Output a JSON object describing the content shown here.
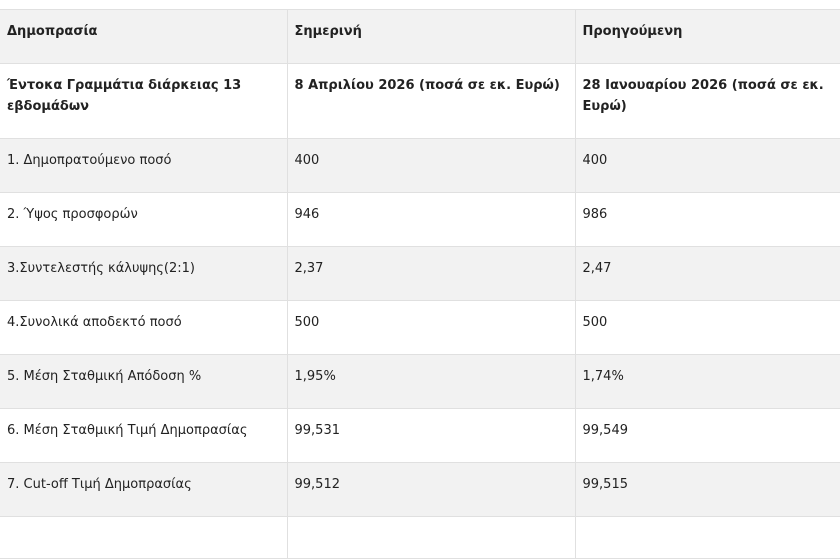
{
  "table": {
    "header": [
      "Δημοπρασία",
      "Σημερινή",
      "Προηγούμενη"
    ],
    "rows": [
      [
        "Έντοκα Γραμμάτια διάρκειας 13 εβδομάδων",
        "8 Απριλίου 2026 (ποσά σε εκ. Ευρώ)",
        "28 Ιανουαρίου 2026 (ποσά σε εκ. Ευρώ)"
      ],
      [
        "1. Δημοπρατούμενο ποσό",
        "400",
        "400"
      ],
      [
        "2. Ύψος προσφορών",
        "946",
        "986"
      ],
      [
        "3.Συντελεστής κάλυψης(2:1)",
        "2,37",
        "2,47"
      ],
      [
        "4.Συνολικά αποδεκτό ποσό",
        "500",
        "500"
      ],
      [
        "5. Μέση Σταθμική Απόδοση %",
        "1,95%",
        "1,74%"
      ],
      [
        "6. Μέση Σταθμική Τιμή Δημοπρασίας",
        "99,531",
        "99,549"
      ],
      [
        "7. Cut-off Τιμή Δημοπρασίας",
        "99,512",
        "99,515"
      ]
    ]
  }
}
